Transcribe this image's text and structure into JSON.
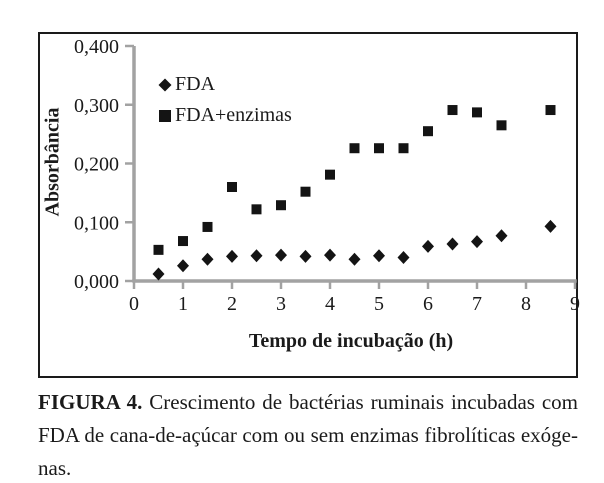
{
  "figure": {
    "caption": {
      "label": "FIGURA 4.",
      "line1": "Crescimento de bactérias ruminais incubadas com",
      "line2": "FDA de cana-de-açúcar com ou sem enzimas fibrolíticas exóge-",
      "line3": "nas."
    }
  },
  "chart_data": {
    "type": "scatter",
    "title": "",
    "xlabel": "Tempo de incubação (h)",
    "ylabel": "Absorbância",
    "xlim": [
      0,
      9
    ],
    "ylim": [
      0,
      0.4
    ],
    "xticks": [
      0,
      1,
      2,
      3,
      4,
      5,
      6,
      7,
      8,
      9
    ],
    "yticks": [
      {
        "label": "0,000",
        "value": 0.0
      },
      {
        "label": "0,100",
        "value": 0.1
      },
      {
        "label": "0,200",
        "value": 0.2
      },
      {
        "label": "0,300",
        "value": 0.3
      },
      {
        "label": "0,400",
        "value": 0.4
      }
    ],
    "legend_position": "upper-left-inside",
    "grid": false,
    "series": [
      {
        "name": "FDA",
        "marker": "diamond",
        "x": [
          0.5,
          1,
          1.5,
          2,
          2.5,
          3,
          3.5,
          4,
          4.5,
          5,
          5.5,
          6,
          6.5,
          7,
          7.5,
          8.5
        ],
        "y": [
          0.012,
          0.026,
          0.037,
          0.042,
          0.043,
          0.044,
          0.042,
          0.044,
          0.037,
          0.043,
          0.04,
          0.059,
          0.063,
          0.067,
          0.077,
          0.093
        ]
      },
      {
        "name": "FDA+enzimas",
        "marker": "square",
        "x": [
          0.5,
          1,
          1.5,
          2,
          2.5,
          3,
          3.5,
          4,
          4.5,
          5,
          5.5,
          6,
          6.5,
          7,
          7.5,
          8.5
        ],
        "y": [
          0.053,
          0.068,
          0.092,
          0.16,
          0.122,
          0.129,
          0.152,
          0.181,
          0.226,
          0.226,
          0.226,
          0.255,
          0.291,
          0.287,
          0.265,
          0.291
        ]
      }
    ],
    "colors": {
      "marker": "#141414",
      "axis": "#a2a2a2",
      "text": "#1a1a1a",
      "frame": "#1a1a1a"
    }
  }
}
